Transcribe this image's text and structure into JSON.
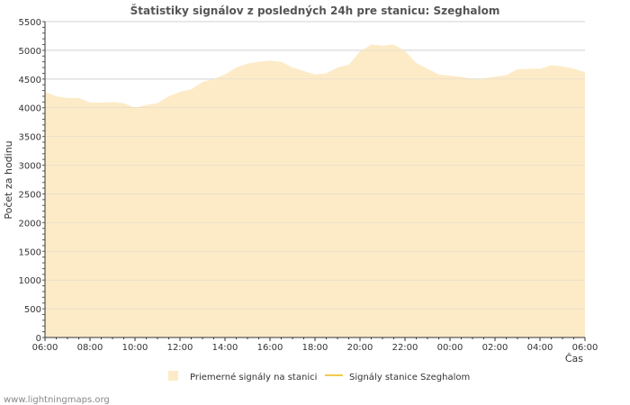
{
  "chart_data": {
    "type": "area",
    "title": "Štatistiky signálov z posledných 24h pre stanicu: Szeghalom",
    "xlabel": "Čas",
    "ylabel": "Počet za hodinu",
    "ylim": [
      0,
      5500
    ],
    "y_ticks": [
      "0",
      "500",
      "1000",
      "1500",
      "2000",
      "2500",
      "3000",
      "3500",
      "4000",
      "4500",
      "5000",
      "5500"
    ],
    "x_tick_labels": [
      "06:00",
      "08:00",
      "10:00",
      "12:00",
      "14:00",
      "16:00",
      "18:00",
      "20:00",
      "22:00",
      "00:00",
      "02:00",
      "04:00",
      "06:00"
    ],
    "x_range_hours": [
      0,
      24
    ],
    "series": [
      {
        "name": "Priemerné signály na stanici",
        "type": "area",
        "color": "#FDEBC8",
        "x_hours": [
          0,
          0.5,
          1,
          1.5,
          2,
          2.5,
          3,
          3.5,
          4,
          4.5,
          5,
          5.5,
          6,
          6.5,
          7,
          7.5,
          8,
          8.5,
          9,
          9.5,
          10,
          10.5,
          11,
          11.5,
          12,
          12.5,
          13,
          13.5,
          14,
          14.5,
          15,
          15.5,
          16,
          16.5,
          17,
          17.5,
          18,
          18.5,
          19,
          19.5,
          20,
          20.5,
          21,
          21.5,
          22,
          22.5,
          23,
          23.5,
          24
        ],
        "values": [
          4280,
          4200,
          4170,
          4170,
          4090,
          4090,
          4100,
          4080,
          4000,
          4050,
          4080,
          4200,
          4280,
          4320,
          4450,
          4500,
          4580,
          4700,
          4770,
          4800,
          4820,
          4800,
          4700,
          4640,
          4580,
          4600,
          4700,
          4750,
          4980,
          5100,
          5080,
          5100,
          4990,
          4780,
          4680,
          4580,
          4560,
          4540,
          4500,
          4510,
          4540,
          4570,
          4670,
          4680,
          4680,
          4740,
          4720,
          4680,
          4620
        ]
      },
      {
        "name": "Signály stanice Szeghalom",
        "type": "line",
        "color": "#F2C94C",
        "values": []
      }
    ]
  },
  "watermark": "www.lightningmaps.org"
}
